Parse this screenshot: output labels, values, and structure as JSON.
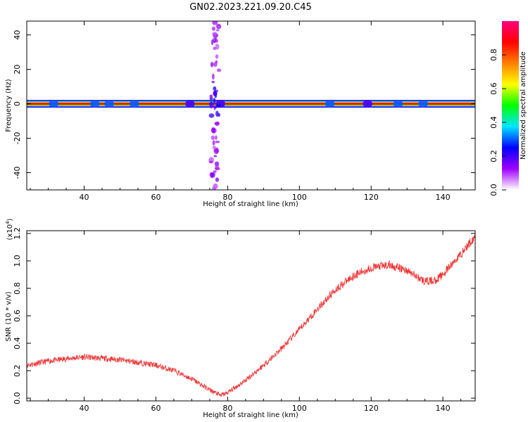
{
  "title": "GN02.2023.221.09.20.C45",
  "top_panel": {
    "xlabel": "Height of straight line (km)",
    "ylabel": "Frequency (Hz)",
    "xticks": [
      "40",
      "60",
      "80",
      "100",
      "120",
      "140"
    ],
    "yticks": [
      "40",
      "20",
      "0",
      "-20",
      "-40"
    ],
    "colorbar": {
      "label": "Normalized spectral amplitude",
      "ticks": [
        "0.0",
        "0.2",
        "0.4",
        "0.6",
        "0.8"
      ],
      "colors": [
        "#ffffff",
        "#a000ff",
        "#0000ff",
        "#00e5ff",
        "#00ff00",
        "#ffff00",
        "#ff8000",
        "#ff0000",
        "#ff0080"
      ]
    }
  },
  "bottom_panel": {
    "xlabel": "Height of straight line (km)",
    "ylabel": "SNR (10 * v/v)",
    "multiplier_base": "(x10",
    "multiplier_exp": "4",
    "multiplier_close": ")",
    "xticks": [
      "40",
      "60",
      "80",
      "100",
      "120",
      "140"
    ],
    "yticks": [
      "1.2",
      "1.0",
      "0.8",
      "0.6",
      "0.4",
      "0.2",
      "0.0"
    ],
    "line_color": "#ee3333"
  },
  "chart_data": [
    {
      "type": "heatmap",
      "title": "GN02.2023.221.09.20.C45",
      "xlabel": "Height of straight line (km)",
      "ylabel": "Frequency (Hz)",
      "xlim": [
        24,
        149
      ],
      "ylim": [
        -50,
        48
      ],
      "colorbar_range": [
        0,
        1
      ],
      "colorbar_label": "Normalized spectral amplitude",
      "band_frequency_hz": 0,
      "band_amplitude": 0.95,
      "vertical_feature_height_km": 76.5,
      "band_nodes": [
        {
          "x": 31.5,
          "amp": 0.3
        },
        {
          "x": 43,
          "amp": 0.3
        },
        {
          "x": 47,
          "amp": 0.3
        },
        {
          "x": 54,
          "amp": 0.3
        },
        {
          "x": 69.5,
          "amp": 0.2
        },
        {
          "x": 78,
          "amp": 0.2
        },
        {
          "x": 108.5,
          "amp": 0.3
        },
        {
          "x": 119,
          "amp": 0.2
        },
        {
          "x": 127.5,
          "amp": 0.3
        },
        {
          "x": 134.5,
          "amp": 0.3
        }
      ]
    },
    {
      "type": "line",
      "xlabel": "Height of straight line (km)",
      "ylabel": "SNR (10 * v/v)",
      "xlim": [
        24,
        149
      ],
      "ylim": [
        -0.02,
        1.22
      ],
      "y_multiplier": 10000,
      "series": [
        {
          "x": [
            24,
            30,
            36,
            40,
            45,
            50,
            55,
            60,
            65,
            70,
            75,
            78,
            80,
            85,
            90,
            95,
            100,
            105,
            110,
            115,
            120,
            125,
            130,
            133,
            135,
            138,
            140,
            145,
            149
          ],
          "values": [
            0.24,
            0.27,
            0.29,
            0.3,
            0.29,
            0.28,
            0.26,
            0.24,
            0.2,
            0.14,
            0.06,
            0.02,
            0.04,
            0.13,
            0.24,
            0.36,
            0.5,
            0.65,
            0.79,
            0.89,
            0.95,
            0.97,
            0.93,
            0.88,
            0.85,
            0.86,
            0.9,
            1.05,
            1.18
          ]
        }
      ]
    }
  ]
}
